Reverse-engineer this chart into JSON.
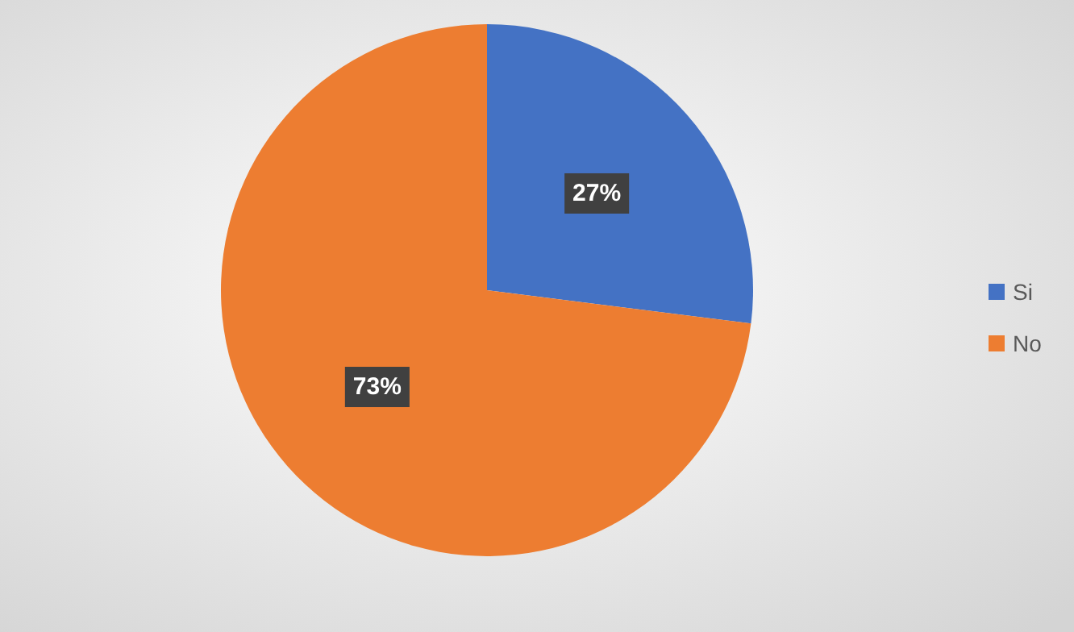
{
  "chart_data": {
    "type": "pie",
    "categories": [
      "Si",
      "No"
    ],
    "values": [
      27,
      73
    ],
    "colors": [
      "#4472c4",
      "#ed7d31"
    ],
    "value_labels": [
      "27%",
      "73%"
    ],
    "legend": "right"
  }
}
